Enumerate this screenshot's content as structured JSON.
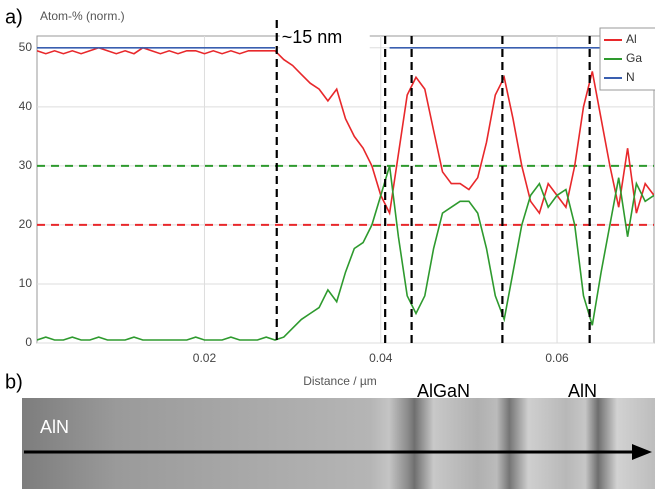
{
  "chart_data": {
    "type": "line",
    "panel_label": "a)",
    "y_label": "Atom-% (norm.)",
    "x_label": "Distance / µm",
    "annotation": "~15 nm",
    "x": [
      0.001,
      0.002,
      0.003,
      0.004,
      0.005,
      0.006,
      0.007,
      0.008,
      0.009,
      0.01,
      0.011,
      0.012,
      0.013,
      0.014,
      0.015,
      0.016,
      0.017,
      0.018,
      0.019,
      0.02,
      0.021,
      0.022,
      0.023,
      0.024,
      0.025,
      0.026,
      0.027,
      0.028,
      0.029,
      0.03,
      0.031,
      0.032,
      0.033,
      0.034,
      0.035,
      0.036,
      0.037,
      0.038,
      0.039,
      0.04,
      0.041,
      0.042,
      0.043,
      0.044,
      0.045,
      0.046,
      0.047,
      0.048,
      0.049,
      0.05,
      0.051,
      0.052,
      0.053,
      0.054,
      0.055,
      0.056,
      0.057,
      0.058,
      0.059,
      0.06,
      0.061,
      0.062,
      0.063,
      0.064,
      0.065,
      0.066,
      0.067,
      0.068,
      0.069,
      0.07,
      0.071
    ],
    "series": [
      {
        "name": "Al",
        "color": "#e8282b",
        "values": [
          49.5,
          49,
          49.5,
          49,
          49.5,
          49,
          49.5,
          50,
          49.5,
          49,
          49.5,
          49,
          50,
          49.5,
          49,
          49.5,
          49,
          49.5,
          49.5,
          49,
          49.5,
          49,
          49.5,
          49,
          49.5,
          49.5,
          49.5,
          49.5,
          48,
          47,
          45.5,
          44,
          43,
          41,
          43,
          38,
          35,
          33,
          30,
          25,
          22,
          32,
          42,
          45,
          43,
          36,
          29,
          27,
          27,
          26,
          28,
          34,
          42,
          45,
          38,
          30,
          24,
          22,
          27,
          25,
          23,
          30,
          40,
          46,
          38,
          30,
          23,
          33,
          22,
          27,
          25
        ]
      },
      {
        "name": "Ga",
        "color": "#2e9a2e",
        "values": [
          0.5,
          1,
          0.5,
          0.5,
          1,
          0.5,
          0.5,
          1,
          0.5,
          0.5,
          0.5,
          1,
          0.5,
          0.5,
          0.5,
          0.5,
          0.5,
          0.5,
          1,
          0.5,
          0.5,
          0.5,
          1,
          0.5,
          0.5,
          0.5,
          1,
          0.5,
          1,
          2.5,
          4,
          5,
          6,
          9,
          7,
          12,
          16,
          17,
          20,
          25,
          30,
          18,
          8,
          5,
          8,
          16,
          22,
          23,
          24,
          24,
          22,
          16,
          8,
          4,
          12,
          20,
          25,
          27,
          23,
          25,
          26,
          20,
          8,
          3,
          12,
          20,
          28,
          18,
          27,
          24,
          25
        ]
      },
      {
        "name": "N",
        "color": "#3a5fb0",
        "values": [
          50,
          50,
          50,
          50,
          50,
          50,
          50,
          50,
          50,
          50,
          50,
          50,
          50,
          50,
          50,
          50,
          50,
          50,
          50,
          50,
          50,
          50,
          50,
          50,
          50,
          50,
          50,
          50,
          null,
          null,
          null,
          null,
          null,
          null,
          null,
          null,
          null,
          null,
          null,
          null,
          50,
          50,
          50,
          50,
          50,
          50,
          50,
          50,
          50,
          50,
          50,
          50,
          50,
          50,
          50,
          50,
          50,
          50,
          50,
          50,
          50,
          50,
          50,
          50,
          50,
          50,
          50,
          50,
          50,
          50,
          50
        ]
      }
    ],
    "xlim": [
      0.001,
      0.071
    ],
    "ylim": [
      0,
      52
    ],
    "xticks": [
      0.02,
      0.04,
      0.06
    ],
    "yticks": [
      0,
      10,
      20,
      30,
      40,
      50
    ],
    "grid": true,
    "legend": "top-right",
    "reference_lines": {
      "horizontal": [
        {
          "value": 30,
          "color": "#2e9a2e"
        },
        {
          "value": 20,
          "color": "#e8282b"
        }
      ],
      "vertical": [
        0.0282,
        0.0405,
        0.0435,
        0.0538,
        0.0637
      ]
    }
  },
  "image": {
    "panel_label": "b)",
    "labels": [
      "AlN",
      "AlGaN",
      "AlN"
    ]
  }
}
